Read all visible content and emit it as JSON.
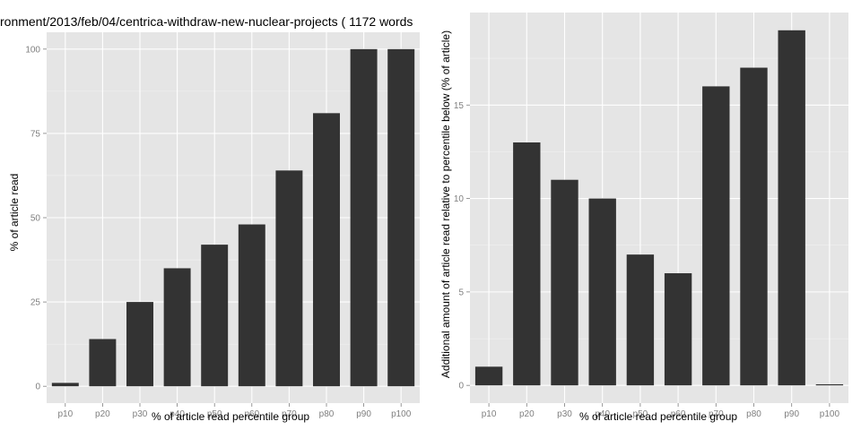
{
  "chart_data": [
    {
      "type": "bar",
      "title": "ronment/2013/feb/04/centrica-withdraw-new-nuclear-projects ( 1172 words",
      "xlabel": "% of article read percentile group",
      "ylabel": "% of article read",
      "categories": [
        "p10",
        "p20",
        "p30",
        "p40",
        "p50",
        "p60",
        "p70",
        "p80",
        "p90",
        "p100"
      ],
      "values": [
        1,
        14,
        25,
        35,
        42,
        48,
        64,
        81,
        100,
        100
      ],
      "ylim": [
        -5,
        105
      ],
      "yticks": [
        0,
        25,
        50,
        75,
        100
      ],
      "grid": true
    },
    {
      "type": "bar",
      "title": "",
      "xlabel": "% of article read percentile group",
      "ylabel": "Additional amount of article read relative to percentile below (% of article)",
      "categories": [
        "p10",
        "p20",
        "p30",
        "p40",
        "p50",
        "p60",
        "p70",
        "p80",
        "p90",
        "p100"
      ],
      "values": [
        1,
        13,
        11,
        10,
        7,
        6,
        16,
        17,
        19,
        0
      ],
      "ylim": [
        -0.95,
        19.95
      ],
      "yticks": [
        0,
        5,
        10,
        15
      ],
      "grid": true
    }
  ]
}
